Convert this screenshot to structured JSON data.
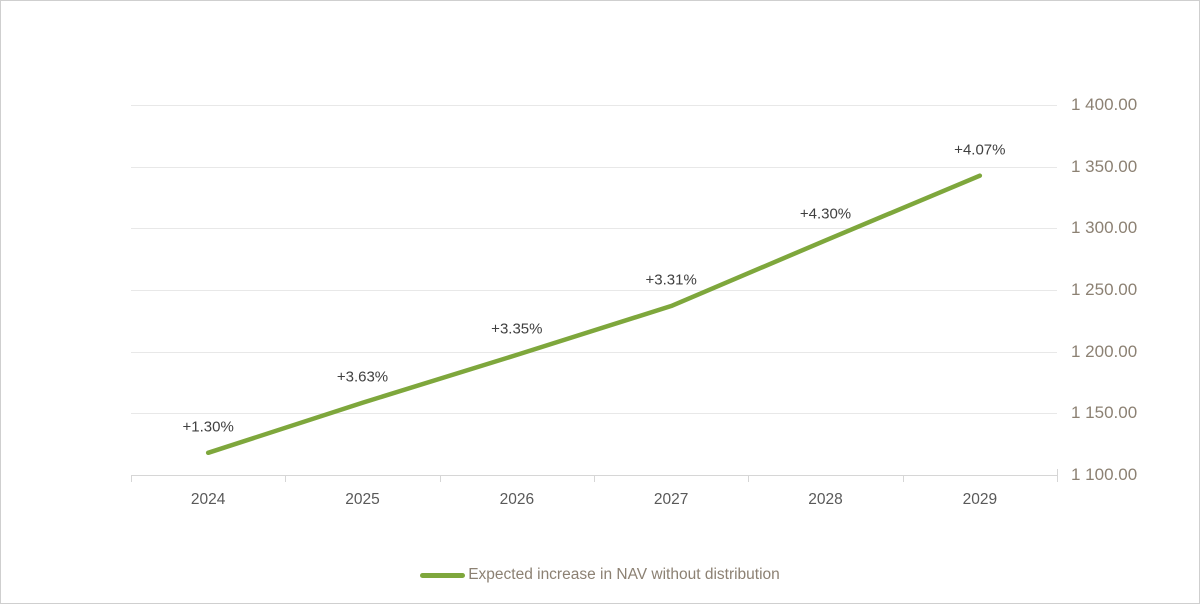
{
  "colors": {
    "series_line": "#7ea73c",
    "y_axis_label": "#8c8173",
    "x_axis_label": "#595959",
    "data_label": "#404040",
    "gridline": "#e8e8e8",
    "axis_line": "#d6d6d6",
    "border": "#cfcfcf",
    "background": "#ffffff"
  },
  "chart_data": {
    "type": "line",
    "title": "",
    "xlabel": "",
    "ylabel": "",
    "categories": [
      "2024",
      "2025",
      "2026",
      "2027",
      "2028",
      "2029"
    ],
    "series": [
      {
        "name": "Expected increase in NAV without distribution",
        "values": [
          1118.0,
          1158.6,
          1197.4,
          1237.0,
          1290.2,
          1342.7
        ],
        "point_labels": [
          "+1.30%",
          "+3.63%",
          "+3.35%",
          "+3.31%",
          "+4.30%",
          "+4.07%"
        ],
        "color": "#7ea73c"
      }
    ],
    "y_axis": {
      "side": "right",
      "min": 1100,
      "max": 1400,
      "step": 50,
      "tick_labels": [
        "1 100.00",
        "1 150.00",
        "1 200.00",
        "1 250.00",
        "1 300.00",
        "1 350.00",
        "1 400.00"
      ]
    },
    "grid": true,
    "legend": {
      "position": "bottom",
      "label": "Expected increase in NAV without distribution"
    }
  }
}
